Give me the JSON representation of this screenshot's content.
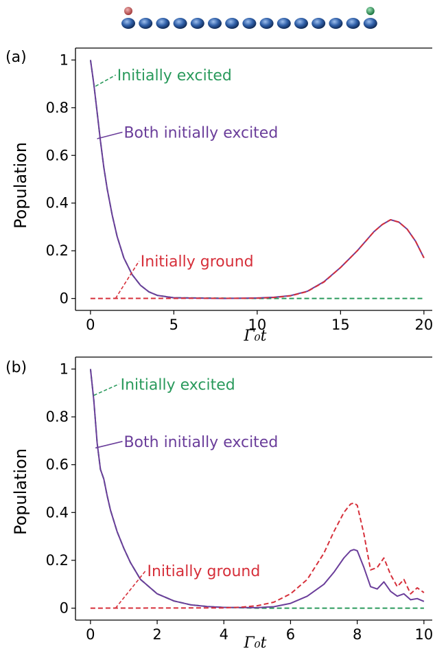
{
  "colors": {
    "excited": "#2a9a5c",
    "both": "#6a3d9a",
    "ground": "#d62f3a",
    "axis": "#000000",
    "atom": "#2f5fa8",
    "atom_red": "#b84a4a",
    "atom_green": "#1f8a4c"
  },
  "atom_chain": {
    "count": 15,
    "extra_atoms": [
      {
        "index": 0,
        "color_key": "atom_red"
      },
      {
        "index": 14,
        "color_key": "atom_green"
      }
    ]
  },
  "chart_data": [
    {
      "type": "line",
      "panel_label": "(a)",
      "xlabel": "Γ₀t",
      "ylabel": "Population",
      "xlim": [
        -0.9,
        20.5
      ],
      "ylim": [
        -0.05,
        1.05
      ],
      "xticks": [
        0,
        5,
        10,
        15,
        20
      ],
      "xtick_labels": [
        "0",
        "5",
        "10",
        "15",
        "20"
      ],
      "yticks": [
        0,
        0.2,
        0.4,
        0.6,
        0.8,
        1
      ],
      "ytick_labels": [
        "0",
        "0.2",
        "0.4",
        "0.6",
        "0.8",
        "1"
      ],
      "series": [
        {
          "name": "Initially excited",
          "style": "dashed",
          "color_key": "excited",
          "x": [
            0,
            0.2,
            0.4,
            0.6,
            0.8,
            1.0,
            1.3,
            1.6,
            2.0,
            2.5,
            3.0,
            3.5,
            4.0,
            5.0,
            10.0,
            20.0
          ],
          "y": [
            1.0,
            0.9,
            0.78,
            0.66,
            0.55,
            0.46,
            0.35,
            0.26,
            0.17,
            0.1,
            0.055,
            0.028,
            0.013,
            0.003,
            0.0,
            0.0
          ]
        },
        {
          "name": "Both initially excited",
          "style": "solid",
          "color_key": "both",
          "x": [
            0,
            0.2,
            0.4,
            0.6,
            0.8,
            1.0,
            1.3,
            1.6,
            2.0,
            2.5,
            3.0,
            3.5,
            4.0,
            5.0,
            8.0,
            10.0,
            11.0,
            12.0,
            13.0,
            14.0,
            15.0,
            16.0,
            17.0,
            17.5,
            18.0,
            18.5,
            19.0,
            19.5,
            20.0
          ],
          "y": [
            1.0,
            0.9,
            0.78,
            0.66,
            0.55,
            0.46,
            0.35,
            0.26,
            0.17,
            0.1,
            0.055,
            0.028,
            0.013,
            0.003,
            0.0,
            0.002,
            0.005,
            0.012,
            0.03,
            0.07,
            0.13,
            0.2,
            0.28,
            0.31,
            0.33,
            0.32,
            0.29,
            0.24,
            0.17
          ]
        },
        {
          "name": "Initially ground",
          "style": "dashed",
          "color_key": "ground",
          "x": [
            0,
            10.0,
            11.0,
            12.0,
            13.0,
            14.0,
            15.0,
            16.0,
            17.0,
            17.5,
            18.0,
            18.5,
            19.0,
            19.5,
            20.0
          ],
          "y": [
            0.0,
            0.001,
            0.004,
            0.011,
            0.029,
            0.069,
            0.13,
            0.2,
            0.28,
            0.31,
            0.33,
            0.32,
            0.29,
            0.24,
            0.17
          ]
        }
      ],
      "annotations": [
        {
          "text": "Initially excited",
          "color_key": "excited",
          "style": "dashed",
          "text_x": 1.6,
          "text_y": 0.92,
          "point_x": 0.3,
          "point_y": 0.89
        },
        {
          "text": "Both initially excited",
          "color_key": "both",
          "style": "solid",
          "text_x": 2.0,
          "text_y": 0.68,
          "point_x": 0.4,
          "point_y": 0.67
        },
        {
          "text": "Initially ground",
          "color_key": "ground",
          "style": "dashed",
          "text_x": 3.0,
          "text_y": 0.14,
          "point_x": 1.5,
          "point_y": 0.0
        }
      ]
    },
    {
      "type": "line",
      "panel_label": "(b)",
      "xlabel": "Γ₀t",
      "ylabel": "Population",
      "xlim": [
        -0.45,
        10.25
      ],
      "ylim": [
        -0.05,
        1.05
      ],
      "xticks": [
        0,
        2,
        4,
        6,
        8,
        10
      ],
      "xtick_labels": [
        "0",
        "2",
        "4",
        "6",
        "8",
        "10"
      ],
      "yticks": [
        0,
        0.2,
        0.4,
        0.6,
        0.8,
        1
      ],
      "ytick_labels": [
        "0",
        "0.2",
        "0.4",
        "0.6",
        "0.8",
        "1"
      ],
      "series": [
        {
          "name": "Initially excited",
          "style": "dashed",
          "color_key": "excited",
          "x": [
            0,
            0.1,
            0.2,
            0.3,
            0.4,
            0.5,
            0.6,
            0.8,
            1.0,
            1.2,
            1.5,
            2.0,
            2.5,
            3.0,
            3.5,
            4.0,
            5.0,
            10.0
          ],
          "y": [
            1.0,
            0.87,
            0.69,
            0.58,
            0.54,
            0.47,
            0.41,
            0.32,
            0.25,
            0.19,
            0.12,
            0.06,
            0.03,
            0.014,
            0.007,
            0.003,
            0.0,
            0.0
          ]
        },
        {
          "name": "Both initially excited",
          "style": "solid",
          "color_key": "both",
          "x": [
            0,
            0.1,
            0.2,
            0.3,
            0.4,
            0.5,
            0.6,
            0.8,
            1.0,
            1.2,
            1.5,
            2.0,
            2.5,
            3.0,
            3.5,
            4.0,
            5.0,
            5.5,
            6.0,
            6.5,
            7.0,
            7.3,
            7.6,
            7.8,
            7.9,
            8.0,
            8.2,
            8.4,
            8.6,
            8.8,
            9.0,
            9.2,
            9.4,
            9.6,
            9.8,
            10.0
          ],
          "y": [
            1.0,
            0.87,
            0.69,
            0.58,
            0.54,
            0.47,
            0.41,
            0.32,
            0.25,
            0.19,
            0.12,
            0.06,
            0.03,
            0.014,
            0.007,
            0.003,
            0.002,
            0.006,
            0.02,
            0.05,
            0.1,
            0.15,
            0.21,
            0.24,
            0.245,
            0.24,
            0.17,
            0.09,
            0.08,
            0.11,
            0.07,
            0.05,
            0.06,
            0.035,
            0.04,
            0.028
          ]
        },
        {
          "name": "Initially ground",
          "style": "dashed",
          "color_key": "ground",
          "x": [
            0,
            4.0,
            4.5,
            5.0,
            5.5,
            6.0,
            6.5,
            7.0,
            7.3,
            7.6,
            7.8,
            7.9,
            8.0,
            8.2,
            8.4,
            8.6,
            8.8,
            9.0,
            9.2,
            9.4,
            9.6,
            9.8,
            10.0
          ],
          "y": [
            0.0,
            0.001,
            0.004,
            0.01,
            0.025,
            0.06,
            0.12,
            0.23,
            0.32,
            0.4,
            0.435,
            0.44,
            0.43,
            0.31,
            0.16,
            0.17,
            0.21,
            0.14,
            0.09,
            0.12,
            0.06,
            0.085,
            0.065
          ]
        }
      ],
      "annotations": [
        {
          "text": "Initially excited",
          "color_key": "excited",
          "style": "dashed",
          "text_x": 0.9,
          "text_y": 0.92,
          "point_x": 0.1,
          "point_y": 0.89
        },
        {
          "text": "Both initially excited",
          "color_key": "both",
          "style": "solid",
          "text_x": 1.0,
          "text_y": 0.68,
          "point_x": 0.15,
          "point_y": 0.67
        },
        {
          "text": "Initially ground",
          "color_key": "ground",
          "style": "dashed",
          "text_x": 1.7,
          "text_y": 0.14,
          "point_x": 0.75,
          "point_y": 0.0
        }
      ]
    }
  ]
}
